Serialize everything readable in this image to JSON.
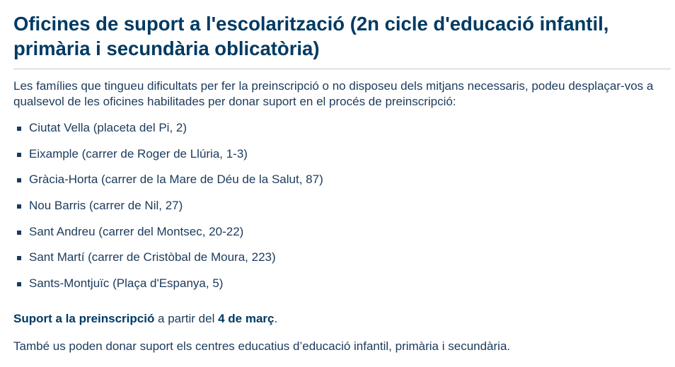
{
  "title": "Oficines de suport a l'escolarització (2n cicle d'educació infantil, primària i secundària oblicatòria)",
  "intro": "Les famílies que tingueu dificultats per fer la preinscripció o no disposeu dels mitjans necessaris, podeu desplaçar-vos a qualsevol de les oficines habilitades per donar suport en el procés de preinscripció:",
  "offices": [
    "Ciutat Vella (placeta del Pi, 2)",
    "Eixample (carrer de Roger de Llúria, 1-3)",
    "Gràcia-Horta (carrer de la Mare de Déu de la Salut, 87)",
    "Nou Barris (carrer de Nil, 27)",
    "Sant Andreu (carrer del Montsec, 20-22)",
    "Sant Martí (carrer de Cristòbal de Moura, 223)",
    "Sants-Montjuïc (Plaça d'Espanya, 5)"
  ],
  "support": {
    "bold1": "Suport a la preinscripció",
    "middle": " a partir del ",
    "bold2": "4 de març",
    "end": "."
  },
  "also": "També us poden donar suport els centres educatius d’educació infantil, primària i secundària.",
  "colors": {
    "heading": "#003a63",
    "text": "#1b3a5c"
  }
}
